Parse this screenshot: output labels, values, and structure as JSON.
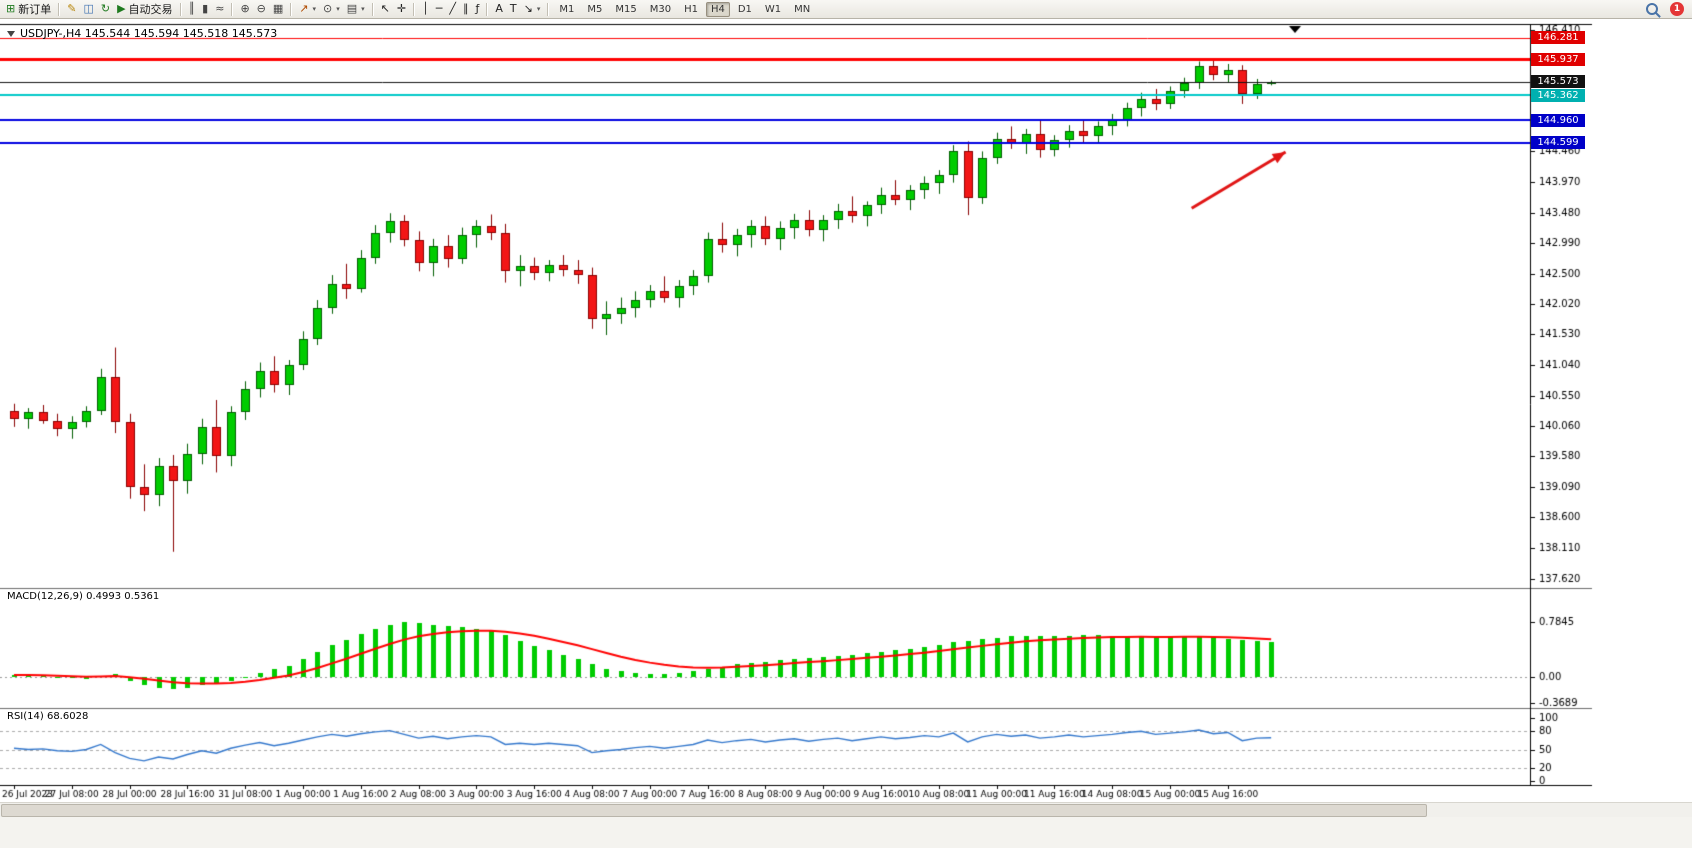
{
  "toolbar": {
    "caret_glyph": "▾",
    "groups": [
      {
        "items": [
          {
            "name": "new-order-button",
            "glyph": "⊞",
            "color": "#1f7a1f",
            "label": "新订单"
          }
        ]
      },
      {
        "items": [
          {
            "name": "metaeditor-button",
            "glyph": "✎",
            "color": "#b8860b"
          },
          {
            "name": "market-watch-button",
            "glyph": "◫",
            "color": "#3b6fb0"
          },
          {
            "name": "refresh-button",
            "glyph": "↻",
            "color": "#1f7a1f"
          },
          {
            "name": "algo-trading-button",
            "glyph": "▶",
            "color": "#1f7a1f",
            "label": "自动交易"
          }
        ]
      },
      {
        "items": [
          {
            "name": "bar-chart-button",
            "glyph": "║",
            "color": "#444444"
          },
          {
            "name": "candlestick-chart-button",
            "glyph": "▮",
            "color": "#444444"
          },
          {
            "name": "line-chart-button",
            "glyph": "≈",
            "color": "#444444"
          }
        ]
      },
      {
        "items": [
          {
            "name": "zoom-in-button",
            "glyph": "⊕",
            "color": "#444444"
          },
          {
            "name": "zoom-out-button",
            "glyph": "⊖",
            "color": "#444444"
          },
          {
            "name": "tile-windows-button",
            "glyph": "▦",
            "color": "#444444"
          }
        ]
      },
      {
        "items": [
          {
            "name": "indicators-button",
            "glyph": "↗",
            "color": "#b04a00",
            "caret": true
          },
          {
            "name": "periods-button",
            "glyph": "⊙",
            "color": "#444444",
            "caret": true
          },
          {
            "name": "templates-button",
            "glyph": "▤",
            "color": "#444444",
            "caret": true
          }
        ]
      },
      {
        "items": [
          {
            "name": "cursor-button",
            "glyph": "↖",
            "color": "#222222"
          },
          {
            "name": "crosshair-button",
            "glyph": "✛",
            "color": "#222222"
          }
        ]
      },
      {
        "items": [
          {
            "name": "vertical-line-button",
            "glyph": "│",
            "color": "#222222"
          },
          {
            "name": "horizontal-line-button",
            "glyph": "─",
            "color": "#222222"
          },
          {
            "name": "trendline-button",
            "glyph": "╱",
            "color": "#222222"
          },
          {
            "name": "equidistant-channel-button",
            "glyph": "∥",
            "color": "#222222"
          },
          {
            "name": "fibonacci-button",
            "glyph": "ƒ",
            "color": "#222222"
          }
        ]
      },
      {
        "items": [
          {
            "name": "text-button",
            "glyph": "A",
            "color": "#222222"
          },
          {
            "name": "text-label-button",
            "glyph": "T",
            "color": "#222222"
          },
          {
            "name": "arrow-objects-button",
            "glyph": "↘",
            "color": "#222222",
            "caret": true
          }
        ]
      }
    ],
    "timeframes": {
      "items": [
        "M1",
        "M5",
        "M15",
        "M30",
        "H1",
        "H4",
        "D1",
        "W1",
        "MN"
      ],
      "active": "H4"
    },
    "right": {
      "notification_count": "1"
    }
  },
  "chart_data": [
    {
      "type": "candlestick",
      "symbol": "USDJPY-",
      "period": "H4",
      "title": "USDJPY-,H4 145.544 145.594 145.518 145.573",
      "current_price": 145.573,
      "ylim": [
        137.55,
        146.5
      ],
      "colors": {
        "up": "#00cc00",
        "up_border": "#005e00",
        "down": "#f21616",
        "down_border": "#8a0000"
      },
      "y_ticks": [
        "146.410",
        "144.460",
        "143.970",
        "143.480",
        "142.990",
        "142.500",
        "142.020",
        "141.530",
        "141.040",
        "140.550",
        "140.060",
        "139.580",
        "139.090",
        "138.600",
        "138.110",
        "137.620"
      ],
      "x_label_every": 4,
      "x_labels": [
        "26 Jul 2023",
        "27 Jul 08:00",
        "28 Jul 00:00",
        "28 Jul 16:00",
        "31 Jul 08:00",
        "1 Aug 00:00",
        "1 Aug 16:00",
        "2 Aug 08:00",
        "3 Aug 00:00",
        "3 Aug 16:00",
        "4 Aug 08:00",
        "7 Aug 00:00",
        "7 Aug 16:00",
        "8 Aug 08:00",
        "9 Aug 00:00",
        "9 Aug 16:00",
        "10 Aug 08:00",
        "11 Aug 00:00",
        "11 Aug 16:00",
        "14 Aug 08:00",
        "15 Aug 00:00",
        "15 Aug 16:00"
      ],
      "hlines": [
        {
          "price": 146.281,
          "label": "146.281",
          "color": "#ff0000",
          "badge": "#e00000",
          "width": 1
        },
        {
          "price": 145.937,
          "label": "145.937",
          "color": "#ff0000",
          "badge": "#e00000",
          "width": 3
        },
        {
          "price": 145.573,
          "label": "145.573",
          "color": "#111111",
          "badge": "#111111",
          "width": 1
        },
        {
          "price": 145.362,
          "label": "145.362",
          "color": "#00c8c8",
          "badge": "#00b0b0",
          "width": 2
        },
        {
          "price": 144.96,
          "label": "144.960",
          "color": "#0000e0",
          "badge": "#0000c8",
          "width": 2
        },
        {
          "price": 144.599,
          "label": "144.599",
          "color": "#0000e0",
          "badge": "#0000c8",
          "width": 2
        }
      ],
      "annotations": [
        {
          "type": "arrow",
          "from": [
            81.5,
            143.55
          ],
          "to": [
            88,
            144.45
          ],
          "color": "#e01515",
          "width": 3
        }
      ],
      "candles": [
        [
          140.3,
          140.42,
          140.05,
          140.18
        ],
        [
          140.18,
          140.35,
          140.02,
          140.28
        ],
        [
          140.28,
          140.4,
          140.1,
          140.15
        ],
        [
          140.15,
          140.26,
          139.9,
          140.02
        ],
        [
          140.02,
          140.22,
          139.86,
          140.12
        ],
        [
          140.12,
          140.38,
          140.04,
          140.3
        ],
        [
          140.3,
          140.98,
          140.24,
          140.85
        ],
        [
          140.85,
          141.32,
          139.95,
          140.12
        ],
        [
          140.12,
          140.26,
          138.9,
          139.08
        ],
        [
          139.08,
          139.45,
          138.7,
          138.96
        ],
        [
          138.96,
          139.55,
          138.78,
          139.42
        ],
        [
          139.42,
          139.6,
          138.05,
          139.18
        ],
        [
          139.18,
          139.78,
          138.98,
          139.62
        ],
        [
          139.62,
          140.18,
          139.45,
          140.05
        ],
        [
          140.05,
          140.48,
          139.32,
          139.58
        ],
        [
          139.58,
          140.38,
          139.42,
          140.28
        ],
        [
          140.28,
          140.78,
          140.16,
          140.66
        ],
        [
          140.66,
          141.08,
          140.52,
          140.95
        ],
        [
          140.95,
          141.18,
          140.6,
          140.72
        ],
        [
          140.72,
          141.12,
          140.56,
          141.04
        ],
        [
          141.04,
          141.58,
          140.96,
          141.46
        ],
        [
          141.46,
          142.08,
          141.36,
          141.96
        ],
        [
          141.96,
          142.48,
          141.86,
          142.34
        ],
        [
          142.34,
          142.66,
          142.1,
          142.26
        ],
        [
          142.26,
          142.88,
          142.2,
          142.76
        ],
        [
          142.76,
          143.28,
          142.66,
          143.16
        ],
        [
          143.16,
          143.47,
          143.0,
          143.34
        ],
        [
          143.34,
          143.44,
          142.94,
          143.04
        ],
        [
          143.04,
          143.18,
          142.54,
          142.68
        ],
        [
          142.68,
          143.06,
          142.46,
          142.94
        ],
        [
          142.94,
          143.12,
          142.6,
          142.74
        ],
        [
          142.74,
          143.24,
          142.66,
          143.12
        ],
        [
          143.12,
          143.36,
          142.92,
          143.26
        ],
        [
          143.26,
          143.45,
          143.04,
          143.16
        ],
        [
          143.16,
          143.3,
          142.36,
          142.54
        ],
        [
          142.54,
          142.8,
          142.3,
          142.62
        ],
        [
          142.62,
          142.76,
          142.4,
          142.52
        ],
        [
          142.52,
          142.72,
          142.38,
          142.64
        ],
        [
          142.64,
          142.8,
          142.46,
          142.56
        ],
        [
          142.56,
          142.72,
          142.34,
          142.48
        ],
        [
          142.48,
          142.6,
          141.62,
          141.78
        ],
        [
          141.78,
          142.06,
          141.52,
          141.86
        ],
        [
          141.86,
          142.12,
          141.7,
          141.96
        ],
        [
          141.96,
          142.22,
          141.8,
          142.08
        ],
        [
          142.08,
          142.32,
          141.96,
          142.22
        ],
        [
          142.22,
          142.46,
          142.04,
          142.12
        ],
        [
          142.12,
          142.4,
          141.96,
          142.3
        ],
        [
          142.3,
          142.56,
          142.16,
          142.46
        ],
        [
          142.46,
          143.16,
          142.36,
          143.06
        ],
        [
          143.06,
          143.32,
          142.84,
          142.96
        ],
        [
          142.96,
          143.22,
          142.78,
          143.12
        ],
        [
          143.12,
          143.36,
          142.92,
          143.26
        ],
        [
          143.26,
          143.42,
          142.96,
          143.06
        ],
        [
          143.06,
          143.34,
          142.88,
          143.24
        ],
        [
          143.24,
          143.46,
          143.06,
          143.36
        ],
        [
          143.36,
          143.52,
          143.1,
          143.2
        ],
        [
          143.2,
          143.44,
          143.02,
          143.36
        ],
        [
          143.36,
          143.62,
          143.22,
          143.5
        ],
        [
          143.5,
          143.74,
          143.32,
          143.42
        ],
        [
          143.42,
          143.66,
          143.26,
          143.6
        ],
        [
          143.6,
          143.88,
          143.46,
          143.76
        ],
        [
          143.76,
          144.0,
          143.6,
          143.68
        ],
        [
          143.68,
          143.92,
          143.52,
          143.84
        ],
        [
          143.84,
          144.06,
          143.7,
          143.96
        ],
        [
          143.96,
          144.16,
          143.78,
          144.08
        ],
        [
          144.08,
          144.56,
          143.96,
          144.46
        ],
        [
          144.46,
          144.62,
          143.44,
          143.72
        ],
        [
          143.72,
          144.46,
          143.62,
          144.36
        ],
        [
          144.36,
          144.76,
          144.26,
          144.66
        ],
        [
          144.66,
          144.86,
          144.5,
          144.58
        ],
        [
          144.58,
          144.82,
          144.42,
          144.74
        ],
        [
          144.74,
          144.96,
          144.36,
          144.48
        ],
        [
          144.48,
          144.72,
          144.38,
          144.64
        ],
        [
          144.64,
          144.88,
          144.52,
          144.78
        ],
        [
          144.78,
          144.96,
          144.6,
          144.7
        ],
        [
          144.7,
          144.94,
          144.58,
          144.86
        ],
        [
          144.86,
          145.06,
          144.72,
          144.96
        ],
        [
          144.96,
          145.24,
          144.86,
          145.16
        ],
        [
          145.16,
          145.4,
          145.02,
          145.3
        ],
        [
          145.3,
          145.46,
          145.12,
          145.22
        ],
        [
          145.22,
          145.5,
          145.14,
          145.42
        ],
        [
          145.42,
          145.64,
          145.32,
          145.56
        ],
        [
          145.56,
          145.9,
          145.46,
          145.82
        ],
        [
          145.82,
          145.94,
          145.6,
          145.68
        ],
        [
          145.68,
          145.86,
          145.56,
          145.76
        ],
        [
          145.76,
          145.84,
          145.22,
          145.38
        ],
        [
          145.38,
          145.62,
          145.3,
          145.54
        ],
        [
          145.544,
          145.594,
          145.518,
          145.573
        ]
      ]
    },
    {
      "type": "macd",
      "label": "MACD(12,26,9) 0.4993 0.5361",
      "main_value": 0.4993,
      "signal_value": 0.5361,
      "colors": {
        "histogram": "#00cc00",
        "signal": "#ff0000"
      },
      "y_labels": [
        "0.7845",
        "0.00",
        "-0.3689"
      ],
      "values": [
        0.03,
        0.02,
        0.01,
        -0.01,
        -0.02,
        -0.03,
        0.02,
        0.04,
        -0.06,
        -0.12,
        -0.15,
        -0.17,
        -0.15,
        -0.11,
        -0.09,
        -0.05,
        0.0,
        0.06,
        0.11,
        0.16,
        0.26,
        0.36,
        0.46,
        0.53,
        0.61,
        0.69,
        0.75,
        0.78,
        0.77,
        0.75,
        0.73,
        0.71,
        0.69,
        0.66,
        0.6,
        0.52,
        0.45,
        0.38,
        0.32,
        0.26,
        0.18,
        0.12,
        0.08,
        0.06,
        0.05,
        0.05,
        0.06,
        0.08,
        0.12,
        0.15,
        0.18,
        0.2,
        0.22,
        0.24,
        0.26,
        0.27,
        0.28,
        0.3,
        0.32,
        0.34,
        0.36,
        0.38,
        0.4,
        0.43,
        0.46,
        0.5,
        0.52,
        0.54,
        0.56,
        0.58,
        0.59,
        0.58,
        0.58,
        0.59,
        0.6,
        0.6,
        0.59,
        0.58,
        0.58,
        0.57,
        0.57,
        0.58,
        0.58,
        0.56,
        0.55,
        0.53,
        0.51,
        0.4993
      ]
    },
    {
      "type": "rsi",
      "label": "RSI(14) 68.6028",
      "current_value": 68.6028,
      "colors": {
        "line": "#3377cc"
      },
      "levels": [
        80,
        50,
        20
      ],
      "y_labels": [
        "100",
        "80",
        "50",
        "20",
        "0"
      ],
      "values": [
        52,
        50,
        51,
        48,
        47,
        50,
        58,
        45,
        36,
        32,
        38,
        35,
        42,
        48,
        44,
        52,
        57,
        61,
        56,
        60,
        65,
        70,
        74,
        71,
        75,
        78,
        80,
        74,
        68,
        71,
        67,
        70,
        72,
        70,
        58,
        60,
        58,
        60,
        58,
        56,
        45,
        48,
        50,
        53,
        55,
        52,
        55,
        58,
        65,
        61,
        64,
        66,
        62,
        65,
        67,
        63,
        66,
        68,
        64,
        67,
        70,
        67,
        69,
        72,
        70,
        76,
        62,
        70,
        74,
        71,
        73,
        68,
        70,
        73,
        70,
        72,
        74,
        77,
        79,
        74,
        76,
        78,
        81,
        75,
        77,
        64,
        68,
        68.6
      ]
    }
  ]
}
